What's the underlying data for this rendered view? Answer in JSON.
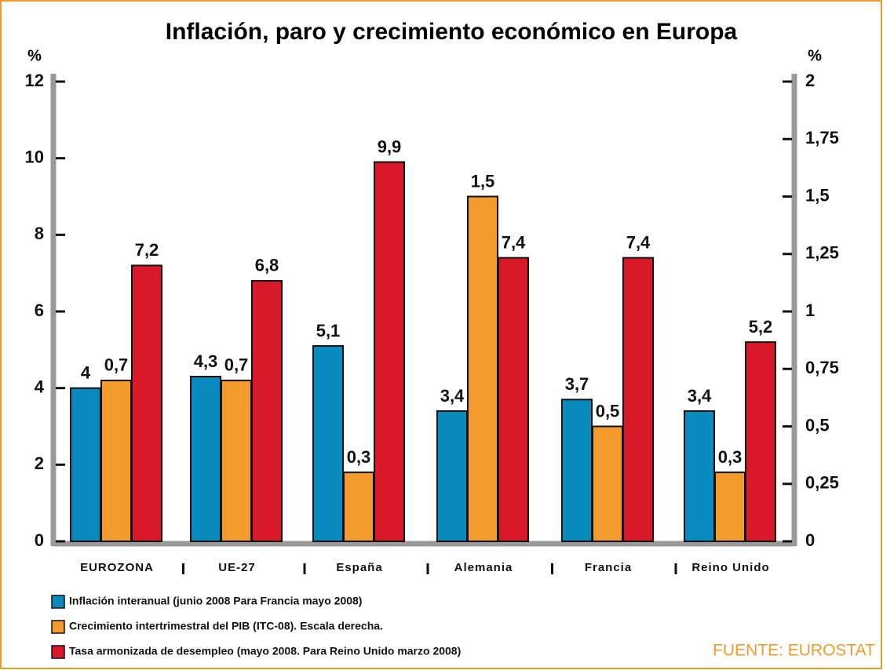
{
  "chart_data": {
    "type": "bar",
    "title": "Inflación, paro y crecimiento económico en Europa",
    "ylabel": "%",
    "y2label": "%",
    "categories": [
      "EUROZONA",
      "UE-27",
      "España",
      "Alemania",
      "Francia",
      "Reino Unido"
    ],
    "series": [
      {
        "name": "Inflación interanual (junio 2008 Para Francia mayo 2008)",
        "color": "#0a8bbf",
        "axis": "y",
        "values": [
          4,
          4.3,
          5.1,
          3.4,
          3.7,
          3.4
        ],
        "value_labels": [
          "4",
          "4,3",
          "5,1",
          "3,4",
          "3,7",
          "3,4"
        ]
      },
      {
        "name": "Crecimiento intertrimestral del PIB (ITC-08). Escala derecha.",
        "color": "#f39a2c",
        "axis": "y2",
        "values": [
          0.7,
          0.7,
          0.3,
          1.5,
          0.5,
          0.3
        ],
        "value_labels": [
          "0,7",
          "0,7",
          "0,3",
          "1,5",
          "0,5",
          "0,3"
        ]
      },
      {
        "name": "Tasa armonizada de desempleo (mayo 2008. Para Reino Unido marzo 2008)",
        "color": "#d7192a",
        "axis": "y",
        "values": [
          7.2,
          6.8,
          9.9,
          7.4,
          7.4,
          5.2
        ],
        "value_labels": [
          "7,2",
          "6,8",
          "9,9",
          "7,4",
          "7,4",
          "5,2"
        ]
      }
    ],
    "ylim": [
      0,
      12
    ],
    "yticks": [
      0,
      2,
      4,
      6,
      8,
      10,
      12
    ],
    "y2lim": [
      0,
      2
    ],
    "y2ticks": [
      0,
      {
        "value": 0.25,
        "label": "0,25"
      },
      {
        "value": 0.5,
        "label": "0,5"
      },
      {
        "value": 0.75,
        "label": "0,75"
      },
      1,
      {
        "value": 1.25,
        "label": "1,25"
      },
      {
        "value": 1.5,
        "label": "1,5"
      },
      {
        "value": 1.75,
        "label": "1,75"
      },
      2
    ],
    "source": "FUENTE: EUROSTAT"
  }
}
